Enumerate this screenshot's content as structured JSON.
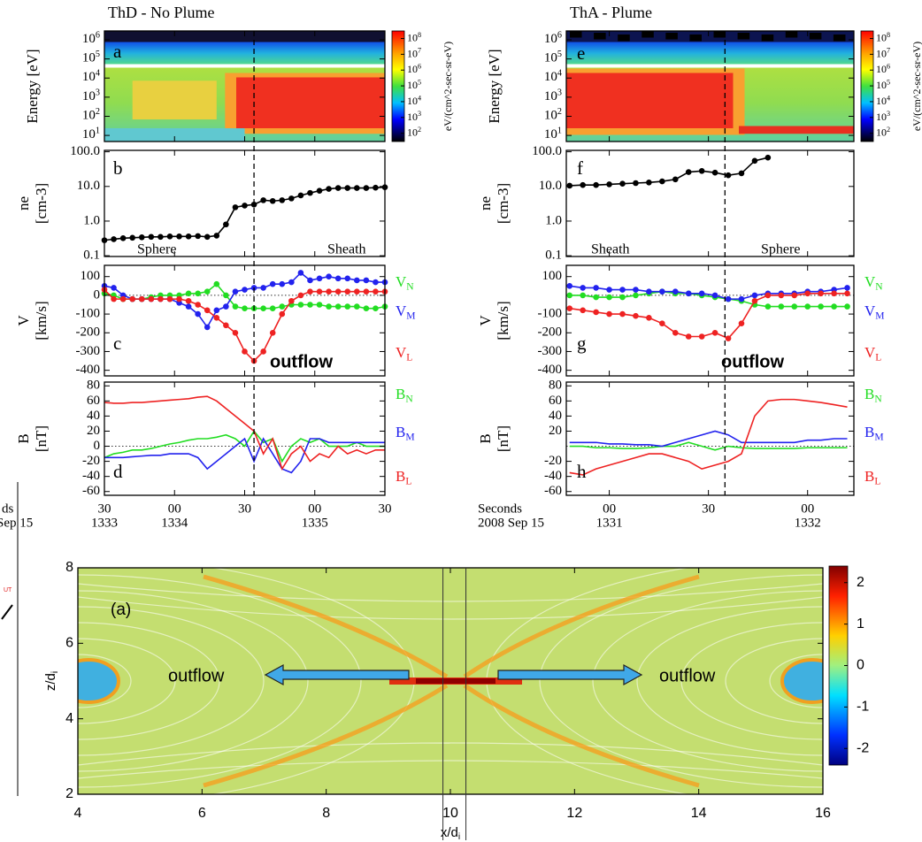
{
  "chart_data": [
    {
      "type": "spectrogram",
      "title": "ThD - No Plume",
      "label": "a",
      "ylabel": "Energy [eV]",
      "xlim": [
        30,
        150
      ],
      "ylim": [
        4.8,
        2900000
      ],
      "ylog": true,
      "yticks": [
        {
          "value": 10,
          "label": "10^1"
        },
        {
          "value": 100,
          "label": "10^2"
        },
        {
          "value": 1000,
          "label": "10^3"
        },
        {
          "value": 10000,
          "label": "10^4"
        },
        {
          "value": 100000,
          "label": "10^5"
        },
        {
          "value": 1000000,
          "label": "10^6"
        }
      ],
      "clim": [
        30,
        300000000
      ],
      "clabel": "eV/(cm^2-sec-sr-eV)",
      "cticks": [
        {
          "value": 100000000,
          "label": "10^8"
        },
        {
          "value": 10000000,
          "label": "10^7"
        },
        {
          "value": 1000000,
          "label": "10^6"
        },
        {
          "value": 100000,
          "label": "10^5"
        },
        {
          "value": 10000,
          "label": "10^4"
        },
        {
          "value": 1000,
          "label": "10^3"
        },
        {
          "value": 100,
          "label": "10^2"
        }
      ]
    },
    {
      "type": "line",
      "label": "b",
      "ylabel": [
        "ne",
        "[cm-3]"
      ],
      "xlim": [
        30,
        150
      ],
      "ylim": [
        0.095,
        110
      ],
      "ylog": true,
      "markers": true,
      "yticks": [
        {
          "value": 100,
          "label": "100.0"
        },
        {
          "value": 10,
          "label": "10.0"
        },
        {
          "value": 1,
          "label": "1.0"
        },
        0.1
      ],
      "annotations": [
        "Sphere",
        "Sheath"
      ],
      "x": [
        30,
        34,
        38,
        42,
        46,
        50,
        54,
        58,
        62,
        66,
        70,
        74,
        78,
        82,
        86,
        90,
        94,
        98,
        102,
        106,
        110,
        114,
        118,
        122,
        126,
        130,
        134,
        138,
        142,
        146,
        150
      ],
      "series": [
        {
          "color": "#000000",
          "values": [
            0.28,
            0.3,
            0.32,
            0.33,
            0.34,
            0.35,
            0.35,
            0.36,
            0.36,
            0.36,
            0.37,
            0.35,
            0.38,
            0.8,
            2.5,
            2.8,
            3.0,
            4.0,
            3.8,
            4.0,
            4.5,
            5.5,
            6.5,
            7.5,
            8.5,
            9.0,
            9.0,
            9.0,
            9.0,
            9.2,
            9.5
          ]
        }
      ]
    },
    {
      "type": "line",
      "label": "c",
      "ylabel": [
        "V",
        "[km/s]"
      ],
      "xlim": [
        30,
        150
      ],
      "ylim": [
        -430,
        160
      ],
      "markers": true,
      "zero_line": true,
      "yticks": [
        100,
        0,
        -100,
        -200,
        -300,
        -400
      ],
      "annotations": [
        "outflow"
      ],
      "x": [
        30,
        34,
        38,
        42,
        46,
        50,
        54,
        58,
        62,
        66,
        70,
        74,
        78,
        82,
        86,
        90,
        94,
        98,
        102,
        106,
        110,
        114,
        118,
        122,
        126,
        130,
        134,
        138,
        142,
        146,
        150
      ],
      "series": [
        {
          "name": "V_N",
          "color": "#22dd22",
          "values": [
            10,
            0,
            -20,
            -20,
            -20,
            -10,
            0,
            0,
            0,
            10,
            10,
            20,
            60,
            0,
            -60,
            -70,
            -70,
            -70,
            -70,
            -60,
            -50,
            -50,
            -50,
            -50,
            -60,
            -60,
            -60,
            -60,
            -70,
            -70,
            -60
          ]
        },
        {
          "name": "V_M",
          "color": "#2222ee",
          "values": [
            50,
            40,
            0,
            -20,
            -20,
            -20,
            -20,
            -20,
            -40,
            -60,
            -100,
            -170,
            -80,
            -60,
            20,
            30,
            40,
            40,
            60,
            60,
            70,
            120,
            80,
            90,
            100,
            90,
            90,
            80,
            80,
            70,
            70
          ]
        },
        {
          "name": "V_L",
          "color": "#ee2222",
          "values": [
            30,
            -20,
            -20,
            -20,
            -20,
            -20,
            -20,
            -20,
            -20,
            -30,
            -50,
            -80,
            -120,
            -160,
            -200,
            -300,
            -350,
            -300,
            -200,
            -100,
            -30,
            0,
            20,
            20,
            20,
            20,
            20,
            20,
            20,
            20,
            20
          ]
        }
      ]
    },
    {
      "type": "line",
      "label": "d",
      "ylabel": [
        "B",
        "[nT]"
      ],
      "xlim": [
        30,
        150
      ],
      "ylim": [
        -65,
        85
      ],
      "zero_line": true,
      "yticks": [
        80,
        60,
        40,
        20,
        0,
        -20,
        -40,
        -60
      ],
      "marker_x": 94,
      "xticks": [
        {
          "value": 30,
          "label": "30",
          "label2": "1333"
        },
        {
          "value": 60,
          "label": "00",
          "label2": "1334"
        },
        {
          "value": 90,
          "label": "30"
        },
        {
          "value": 120,
          "label": "00",
          "label2": "1335"
        },
        {
          "value": 150,
          "label": "30"
        }
      ],
      "x": [
        30,
        34,
        38,
        42,
        46,
        50,
        54,
        58,
        62,
        66,
        70,
        74,
        78,
        82,
        86,
        90,
        94,
        98,
        102,
        106,
        110,
        114,
        118,
        122,
        126,
        130,
        134,
        138,
        142,
        146,
        150
      ],
      "series": [
        {
          "name": "B_N",
          "color": "#22dd22",
          "values": [
            -15,
            -10,
            -8,
            -5,
            -5,
            -3,
            0,
            3,
            5,
            8,
            10,
            10,
            12,
            15,
            10,
            0,
            20,
            5,
            10,
            -20,
            0,
            10,
            5,
            10,
            0,
            0,
            0,
            5,
            0,
            0,
            0
          ]
        },
        {
          "name": "B_M",
          "color": "#2222ee",
          "values": [
            -15,
            -15,
            -15,
            -14,
            -13,
            -12,
            -12,
            -10,
            -10,
            -10,
            -15,
            -30,
            -20,
            -10,
            0,
            10,
            -20,
            10,
            -10,
            -30,
            -35,
            -20,
            10,
            10,
            5,
            5,
            5,
            5,
            5,
            5,
            5
          ]
        },
        {
          "name": "B_L",
          "color": "#ee2222",
          "values": [
            58,
            57,
            57,
            58,
            58,
            59,
            60,
            61,
            62,
            63,
            65,
            66,
            60,
            50,
            40,
            30,
            20,
            -10,
            10,
            -30,
            -10,
            0,
            -20,
            -10,
            -15,
            0,
            -10,
            -5,
            -10,
            -5,
            -5
          ]
        }
      ]
    },
    {
      "type": "spectrogram",
      "title": "ThA - Plume",
      "label": "e",
      "ylabel": "Energy [eV]",
      "xlim": [
        47,
        134
      ],
      "ylim": [
        4.8,
        2900000
      ],
      "ylog": true,
      "yticks": [
        {
          "value": 10,
          "label": "10^1"
        },
        {
          "value": 100,
          "label": "10^2"
        },
        {
          "value": 1000,
          "label": "10^3"
        },
        {
          "value": 10000,
          "label": "10^4"
        },
        {
          "value": 100000,
          "label": "10^5"
        },
        {
          "value": 1000000,
          "label": "10^6"
        }
      ],
      "clim": [
        30,
        300000000
      ],
      "clabel": "eV/(cm^2-sec-sr-eV)",
      "cticks": [
        {
          "value": 100000000,
          "label": "10^8"
        },
        {
          "value": 10000000,
          "label": "10^7"
        },
        {
          "value": 1000000,
          "label": "10^6"
        },
        {
          "value": 100000,
          "label": "10^5"
        },
        {
          "value": 10000,
          "label": "10^4"
        },
        {
          "value": 1000,
          "label": "10^3"
        },
        {
          "value": 100,
          "label": "10^2"
        }
      ]
    },
    {
      "type": "line",
      "label": "f",
      "ylabel": [
        "ne",
        "[cm-3]"
      ],
      "xlim": [
        47,
        134
      ],
      "ylim": [
        0.095,
        110
      ],
      "ylog": true,
      "markers": true,
      "yticks": [
        {
          "value": 100,
          "label": "100.0"
        },
        {
          "value": 10,
          "label": "10.0"
        },
        {
          "value": 1,
          "label": "1.0"
        },
        0.1
      ],
      "annotations": [
        "Sheath",
        "Sphere"
      ],
      "x": [
        48,
        52,
        56,
        60,
        64,
        68,
        72,
        76,
        80,
        84,
        88,
        92,
        96,
        100,
        104,
        108
      ],
      "series": [
        {
          "color": "#000000",
          "values": [
            10.5,
            11,
            11,
            11.5,
            12,
            12.5,
            13,
            14,
            16,
            26,
            28,
            25,
            21,
            24,
            55,
            68
          ]
        }
      ]
    },
    {
      "type": "line",
      "label": "g",
      "ylabel": [
        "V",
        "[km/s]"
      ],
      "xlim": [
        47,
        134
      ],
      "ylim": [
        -430,
        160
      ],
      "markers": true,
      "zero_line": true,
      "yticks": [
        100,
        -100,
        -200,
        -300,
        -400
      ],
      "annotations": [
        "outflow"
      ],
      "x": [
        48,
        52,
        56,
        60,
        64,
        68,
        72,
        76,
        80,
        84,
        88,
        92,
        96,
        100,
        104,
        108,
        112,
        116,
        120,
        124,
        128,
        132
      ],
      "series": [
        {
          "name": "V_N",
          "color": "#22dd22",
          "values": [
            0,
            0,
            -10,
            -10,
            -10,
            0,
            10,
            20,
            10,
            10,
            0,
            -10,
            -20,
            -30,
            -50,
            -60,
            -60,
            -60,
            -60,
            -60,
            -60,
            -60
          ]
        },
        {
          "name": "V_M",
          "color": "#2222ee",
          "values": [
            50,
            40,
            40,
            30,
            30,
            30,
            20,
            20,
            20,
            10,
            10,
            0,
            -20,
            -20,
            0,
            10,
            10,
            10,
            20,
            20,
            30,
            40
          ]
        },
        {
          "name": "V_L",
          "color": "#ee2222",
          "values": [
            -70,
            -80,
            -90,
            -100,
            -100,
            -110,
            -120,
            -150,
            -200,
            -220,
            -220,
            -200,
            -230,
            -150,
            -30,
            0,
            0,
            0,
            10,
            10,
            10,
            10
          ]
        }
      ]
    },
    {
      "type": "line",
      "label": "h",
      "ylabel": [
        "B",
        "[nT]"
      ],
      "xlim": [
        47,
        134
      ],
      "ylim": [
        -65,
        85
      ],
      "zero_line": true,
      "yticks": [
        80,
        60,
        40,
        20,
        -20,
        -40,
        -60
      ],
      "marker_x": 95,
      "xlabel": [
        "Seconds",
        "2008 Sep 15"
      ],
      "xticks": [
        {
          "value": 60,
          "label": "00",
          "label2": "1331"
        },
        {
          "value": 90,
          "label": "30"
        },
        {
          "value": 120,
          "label": "00",
          "label2": "1332"
        }
      ],
      "x": [
        48,
        52,
        56,
        60,
        64,
        68,
        72,
        76,
        80,
        84,
        88,
        92,
        96,
        100,
        104,
        108,
        112,
        116,
        120,
        124,
        128,
        132
      ],
      "series": [
        {
          "name": "B_N",
          "color": "#22dd22",
          "values": [
            0,
            0,
            -2,
            -2,
            -3,
            -3,
            -2,
            0,
            0,
            5,
            0,
            -5,
            0,
            -2,
            -3,
            -3,
            -3,
            -3,
            -2,
            -2,
            -2,
            -2
          ]
        },
        {
          "name": "B_M",
          "color": "#2222ee",
          "values": [
            5,
            5,
            5,
            3,
            3,
            2,
            2,
            0,
            5,
            10,
            15,
            20,
            15,
            5,
            5,
            5,
            5,
            5,
            8,
            8,
            10,
            10
          ]
        },
        {
          "name": "B_L",
          "color": "#ee2222",
          "values": [
            -35,
            -38,
            -30,
            -25,
            -20,
            -15,
            -10,
            -10,
            -15,
            -20,
            -30,
            -25,
            -20,
            -10,
            40,
            60,
            62,
            62,
            60,
            58,
            55,
            52
          ]
        }
      ]
    },
    {
      "type": "heatmap",
      "label": "(a)",
      "xlabel": "x/d_i",
      "ylabel": "z/d_i",
      "xlim": [
        4,
        16
      ],
      "xticks": [
        4,
        6,
        8,
        10,
        12,
        14,
        16
      ],
      "ylim": [
        2,
        8
      ],
      "yticks": [
        2,
        4,
        6,
        8
      ],
      "clim": [
        -2.4,
        2.4
      ],
      "cticks": [
        2,
        1,
        0,
        -1,
        -2
      ],
      "vlines": [
        9.88,
        10.25
      ],
      "annotations": [
        "outflow",
        "outflow"
      ]
    }
  ],
  "fragment": {
    "texts": [
      "ds",
      "Sep 15",
      "UT"
    ]
  }
}
